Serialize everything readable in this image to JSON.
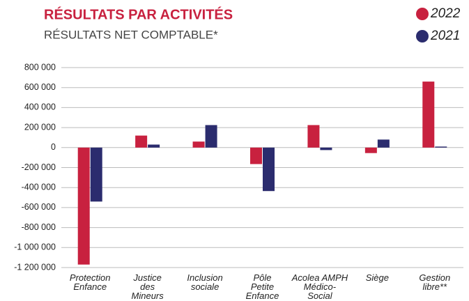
{
  "chart_data": {
    "type": "bar",
    "title": "RÉSULTATS PAR ACTIVITÉS",
    "subtitle": "RÉSULTATS NET COMPTABLE*",
    "categories": [
      "Protection\nEnfance",
      "Justice\ndes\nMineurs",
      "Inclusion\nsociale",
      "Pôle\nPetite\nEnfance",
      "Acolea AMPH\nMédico-\nSocial",
      "Siège",
      "Gestion\nlibre**"
    ],
    "series": [
      {
        "name": "2022",
        "color": "#c8213f",
        "values": [
          -1170000,
          120000,
          60000,
          -165000,
          225000,
          -55000,
          660000
        ]
      },
      {
        "name": "2021",
        "color": "#2b2c6e",
        "values": [
          -540000,
          30000,
          225000,
          -435000,
          -25000,
          80000,
          10000
        ]
      }
    ],
    "ylim": [
      -1200000,
      800000
    ],
    "yticks": [
      {
        "value": 800000,
        "label": "800 000"
      },
      {
        "value": 600000,
        "label": "600 000"
      },
      {
        "value": 400000,
        "label": "400 000"
      },
      {
        "value": 200000,
        "label": "200 000"
      },
      0,
      {
        "value": -200000,
        "label": "-200 000"
      },
      {
        "value": -400000,
        "label": "-400 000"
      },
      {
        "value": -600000,
        "label": "-600 000"
      },
      {
        "value": -800000,
        "label": "-800 000"
      },
      {
        "value": -1000000,
        "label": "-1 000 000"
      },
      {
        "value": -1200000,
        "label": "-1 200 000"
      }
    ],
    "grid": true
  }
}
